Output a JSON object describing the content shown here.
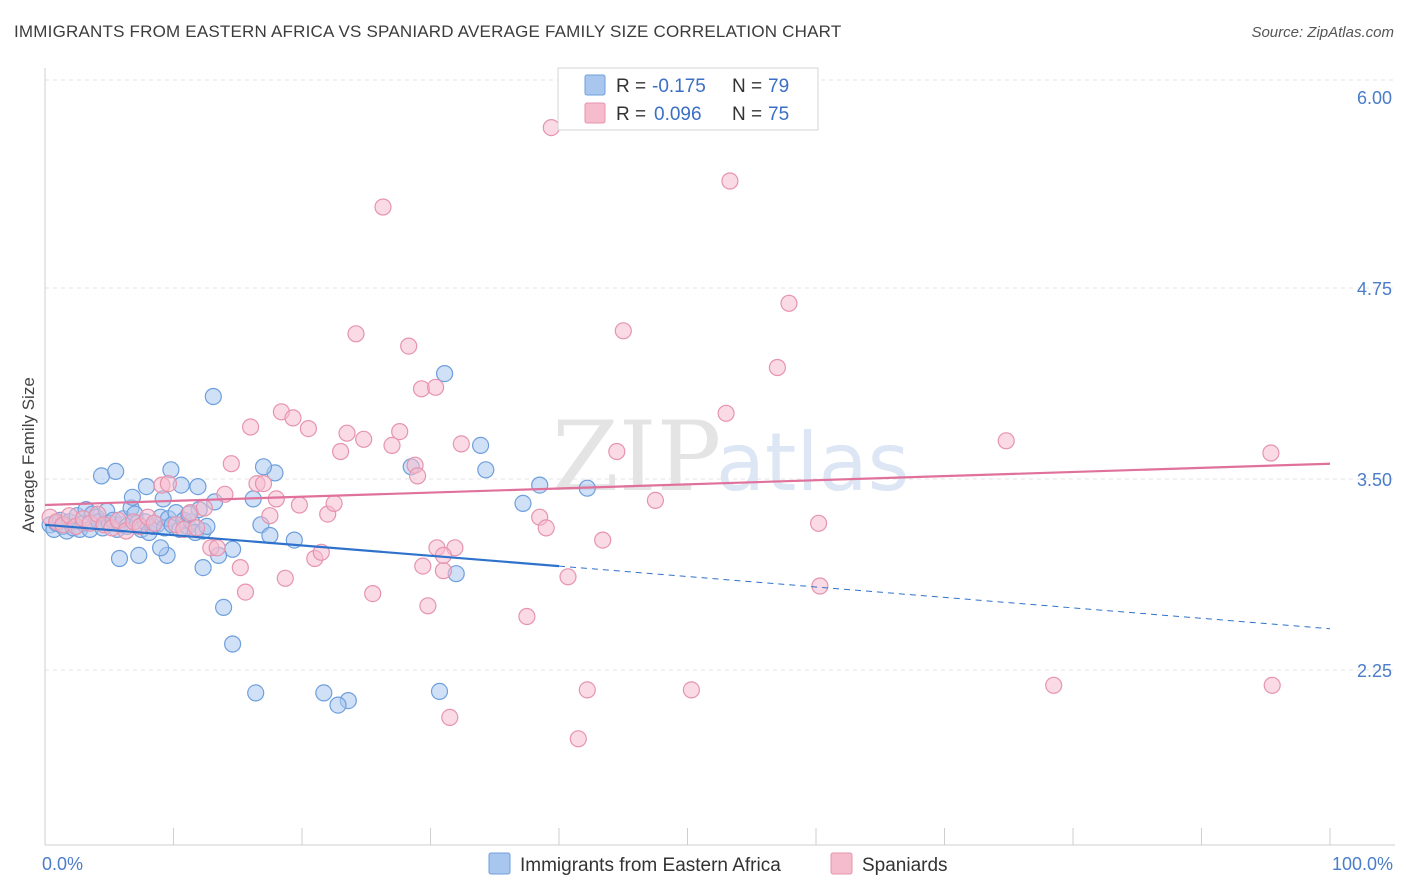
{
  "title": "IMMIGRANTS FROM EASTERN AFRICA VS SPANIARD AVERAGE FAMILY SIZE CORRELATION CHART",
  "source": "Source: ZipAtlas.com",
  "watermark": {
    "zip": "ZIP",
    "atlas": "atlas"
  },
  "colors": {
    "blue_fill": "#a9c6ef",
    "blue_stroke": "#6e9fdc",
    "blue_line": "#2f72cc",
    "pink_fill": "#f5bccd",
    "pink_stroke": "#e694ae",
    "pink_line": "#e0719b",
    "grid": "#e3e3e3",
    "axis_label": "#4a7cc9"
  },
  "legend": {
    "rows": [
      {
        "r_label": "R =",
        "r_value": "-0.175",
        "n_label": "N =",
        "n_value": "79"
      },
      {
        "r_label": "R =",
        "r_value": "0.096",
        "n_label": "N =",
        "n_value": "75"
      }
    ]
  },
  "bottom_legend": [
    "Immigrants from Eastern Africa",
    "Spaniards"
  ],
  "chart_data": {
    "type": "scatter",
    "ylabel": "Average Family Size",
    "x_tick_labels": [
      "0.0%",
      "100.0%"
    ],
    "y_tick_labels": [
      "6.00",
      "4.75",
      "3.50",
      "2.25"
    ],
    "y_ticks": [
      6.0,
      4.75,
      3.5,
      2.25
    ],
    "xlim": [
      0,
      100
    ],
    "ylim": [
      1.22,
      6.12
    ],
    "grid": "horizontal dashed",
    "legend_placement": "top-center",
    "series": [
      {
        "name": "Immigrants from Eastern Africa",
        "color": "#a9c6ef",
        "trend": {
          "x_start": 0,
          "y_start": 3.2,
          "x_solid_end": 40,
          "y_solid_end": 2.93,
          "x_end": 100,
          "y_end": 2.52
        },
        "points": [
          [
            0.4,
            3.2
          ],
          [
            0.7,
            3.17
          ],
          [
            0.9,
            3.21
          ],
          [
            1.2,
            3.23
          ],
          [
            1.4,
            3.19
          ],
          [
            1.7,
            3.16
          ],
          [
            1.9,
            3.22
          ],
          [
            2.2,
            3.18
          ],
          [
            2.5,
            3.26
          ],
          [
            2.7,
            3.17
          ],
          [
            3.0,
            3.21
          ],
          [
            3.2,
            3.3
          ],
          [
            3.5,
            3.17
          ],
          [
            3.7,
            3.27
          ],
          [
            4.0,
            3.25
          ],
          [
            4.2,
            3.22
          ],
          [
            4.5,
            3.18
          ],
          [
            4.8,
            3.29
          ],
          [
            5.0,
            3.21
          ],
          [
            5.3,
            3.23
          ],
          [
            5.6,
            3.17
          ],
          [
            5.9,
            3.2
          ],
          [
            6.1,
            3.24
          ],
          [
            6.4,
            3.19
          ],
          [
            6.7,
            3.31
          ],
          [
            7.0,
            3.27
          ],
          [
            7.2,
            3.21
          ],
          [
            7.5,
            3.17
          ],
          [
            7.8,
            3.22
          ],
          [
            8.1,
            3.15
          ],
          [
            8.4,
            3.19
          ],
          [
            8.7,
            3.2
          ],
          [
            9.0,
            3.25
          ],
          [
            9.3,
            3.18
          ],
          [
            9.6,
            3.24
          ],
          [
            9.9,
            3.2
          ],
          [
            10.2,
            3.28
          ],
          [
            10.5,
            3.17
          ],
          [
            10.8,
            3.23
          ],
          [
            11.1,
            3.19
          ],
          [
            11.4,
            3.22
          ],
          [
            11.7,
            3.15
          ],
          [
            12.0,
            3.3
          ],
          [
            12.3,
            3.16
          ],
          [
            12.6,
            3.19
          ],
          [
            4.4,
            3.52
          ],
          [
            5.5,
            3.55
          ],
          [
            6.8,
            3.38
          ],
          [
            7.9,
            3.45
          ],
          [
            9.2,
            3.37
          ],
          [
            9.8,
            3.56
          ],
          [
            10.6,
            3.46
          ],
          [
            11.2,
            3.27
          ],
          [
            11.9,
            3.45
          ],
          [
            13.2,
            3.35
          ],
          [
            14.6,
            3.04
          ],
          [
            16.2,
            3.37
          ],
          [
            16.8,
            3.2
          ],
          [
            17.5,
            3.13
          ],
          [
            17.9,
            3.54
          ],
          [
            13.5,
            3.0
          ],
          [
            12.3,
            2.92
          ],
          [
            7.3,
            3.0
          ],
          [
            5.8,
            2.98
          ],
          [
            9.5,
            3.0
          ],
          [
            13.1,
            4.04
          ],
          [
            13.9,
            2.66
          ],
          [
            14.6,
            2.42
          ],
          [
            17.0,
            3.58
          ],
          [
            19.4,
            3.1
          ],
          [
            21.7,
            2.1
          ],
          [
            23.6,
            2.05
          ],
          [
            30.7,
            2.11
          ],
          [
            31.1,
            4.19
          ],
          [
            32.0,
            2.88
          ],
          [
            33.9,
            3.72
          ],
          [
            34.3,
            3.56
          ],
          [
            38.5,
            3.46
          ],
          [
            42.2,
            3.44
          ]
        ],
        "extra_points": [
          [
            16.4,
            2.1
          ],
          [
            22.8,
            2.02
          ],
          [
            28.5,
            3.58
          ],
          [
            37.2,
            3.34
          ],
          [
            9.0,
            3.05
          ]
        ]
      },
      {
        "name": "Spaniards",
        "color": "#f5bccd",
        "trend": {
          "x_start": 0,
          "y_start": 3.33,
          "x_end": 100,
          "y_end": 3.6
        },
        "points": [
          [
            0.4,
            3.25
          ],
          [
            0.9,
            3.22
          ],
          [
            1.4,
            3.2
          ],
          [
            1.9,
            3.26
          ],
          [
            2.4,
            3.19
          ],
          [
            3.0,
            3.24
          ],
          [
            3.5,
            3.21
          ],
          [
            4.1,
            3.27
          ],
          [
            4.6,
            3.2
          ],
          [
            5.2,
            3.18
          ],
          [
            5.7,
            3.23
          ],
          [
            6.3,
            3.16
          ],
          [
            6.9,
            3.22
          ],
          [
            7.4,
            3.19
          ],
          [
            8.0,
            3.25
          ],
          [
            8.5,
            3.21
          ],
          [
            9.1,
            3.46
          ],
          [
            9.6,
            3.47
          ],
          [
            10.2,
            3.2
          ],
          [
            10.8,
            3.17
          ],
          [
            11.3,
            3.28
          ],
          [
            11.8,
            3.18
          ],
          [
            12.4,
            3.31
          ],
          [
            12.9,
            3.05
          ],
          [
            13.4,
            3.05
          ],
          [
            14.0,
            3.4
          ],
          [
            14.5,
            3.6
          ],
          [
            15.2,
            2.92
          ],
          [
            15.6,
            2.76
          ],
          [
            16.0,
            3.84
          ],
          [
            16.5,
            3.47
          ],
          [
            17.0,
            3.47
          ],
          [
            17.5,
            3.26
          ],
          [
            18.0,
            3.37
          ],
          [
            18.4,
            3.94
          ],
          [
            18.7,
            2.85
          ],
          [
            19.3,
            3.9
          ],
          [
            19.8,
            3.33
          ],
          [
            20.5,
            3.83
          ],
          [
            21.0,
            2.98
          ],
          [
            21.5,
            3.02
          ],
          [
            22.0,
            3.27
          ],
          [
            22.5,
            3.34
          ],
          [
            23.0,
            3.68
          ],
          [
            23.5,
            3.8
          ],
          [
            24.2,
            4.45
          ],
          [
            24.8,
            3.76
          ],
          [
            25.5,
            2.75
          ],
          [
            26.3,
            5.28
          ],
          [
            27.0,
            3.72
          ],
          [
            27.6,
            3.81
          ],
          [
            28.3,
            4.37
          ],
          [
            28.8,
            3.59
          ],
          [
            29.3,
            4.09
          ],
          [
            29.8,
            2.67
          ],
          [
            30.5,
            3.05
          ],
          [
            31.0,
            2.9
          ],
          [
            31.5,
            1.94
          ],
          [
            31.9,
            3.05
          ],
          [
            32.4,
            3.73
          ],
          [
            29.0,
            3.52
          ],
          [
            31.0,
            3.0
          ],
          [
            29.4,
            2.93
          ],
          [
            30.4,
            4.1
          ],
          [
            37.5,
            2.6
          ],
          [
            38.5,
            3.25
          ],
          [
            39.4,
            5.8
          ],
          [
            40.7,
            2.86
          ],
          [
            42.2,
            2.12
          ],
          [
            43.4,
            3.1
          ],
          [
            44.5,
            3.68
          ],
          [
            45.0,
            4.47
          ],
          [
            47.5,
            3.36
          ],
          [
            50.3,
            2.12
          ],
          [
            53.3,
            5.45
          ]
        ],
        "extra_points": [
          [
            53.0,
            3.93
          ],
          [
            57.9,
            4.65
          ],
          [
            60.2,
            3.21
          ],
          [
            60.3,
            2.8
          ],
          [
            74.8,
            3.75
          ],
          [
            95.5,
            2.15
          ],
          [
            95.4,
            3.67
          ],
          [
            78.5,
            2.15
          ],
          [
            57.0,
            4.23
          ],
          [
            41.5,
            1.8
          ],
          [
            39.0,
            3.18
          ]
        ]
      }
    ]
  }
}
